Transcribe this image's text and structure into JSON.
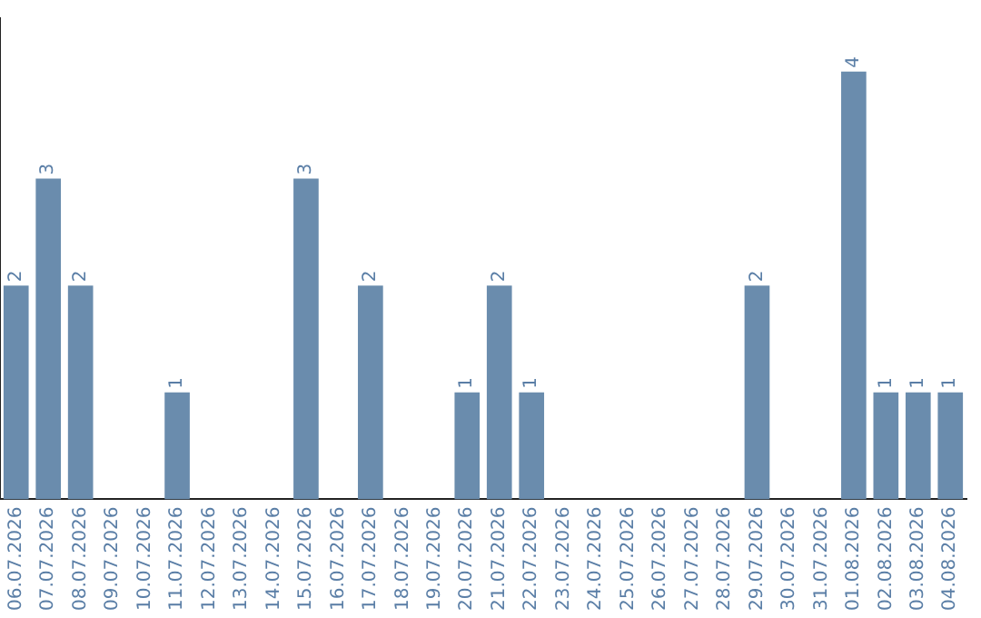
{
  "chart_data": {
    "type": "bar",
    "categories": [
      "06.07.2026",
      "07.07.2026",
      "08.07.2026",
      "09.07.2026",
      "10.07.2026",
      "11.07.2026",
      "12.07.2026",
      "13.07.2026",
      "14.07.2026",
      "15.07.2026",
      "16.07.2026",
      "17.07.2026",
      "18.07.2026",
      "19.07.2026",
      "20.07.2026",
      "21.07.2026",
      "22.07.2026",
      "23.07.2026",
      "24.07.2026",
      "25.07.2026",
      "26.07.2026",
      "27.07.2026",
      "28.07.2026",
      "29.07.2026",
      "30.07.2026",
      "31.07.2026",
      "01.08.2026",
      "02.08.2026",
      "03.08.2026",
      "04.08.2026"
    ],
    "values": [
      2,
      3,
      2,
      0,
      0,
      1,
      0,
      0,
      0,
      3,
      0,
      2,
      0,
      0,
      1,
      2,
      1,
      0,
      0,
      0,
      0,
      0,
      0,
      2,
      0,
      0,
      4,
      1,
      1,
      1
    ],
    "value_labels": [
      "2",
      "3",
      "2",
      null,
      null,
      "1",
      null,
      null,
      null,
      "3",
      null,
      "2",
      null,
      null,
      "1",
      "2",
      "1",
      null,
      null,
      null,
      null,
      null,
      null,
      "2",
      null,
      null,
      "4",
      "1",
      "1",
      "1"
    ],
    "color": "#6a8cad",
    "tick_labels": "x",
    "grid": false,
    "legend": false
  }
}
